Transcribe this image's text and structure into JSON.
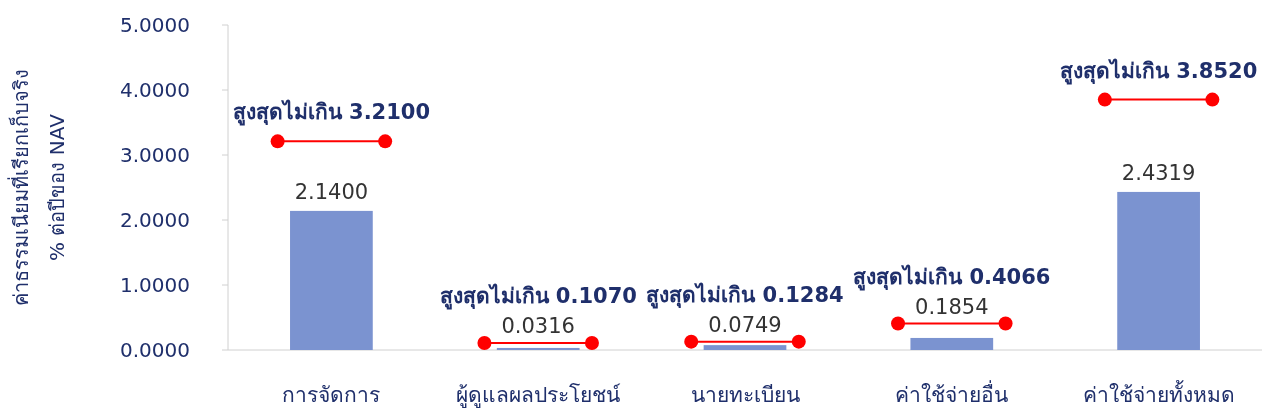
{
  "chart_data": {
    "type": "bar",
    "ylabel": "ค่าธรรมเนียมที่เรียกเก็บจริง\n% ต่อปีของ NAV",
    "categories": [
      "การจัดการ",
      "ผู้ดูแลผลประโยชน์",
      "นายทะเบียน",
      "ค่าใช้จ่ายอื่น",
      "ค่าใช้จ่ายทั้งหมด"
    ],
    "series": [
      {
        "color": "#7b93d0",
        "values": [
          2.14,
          0.0316,
          0.0749,
          0.1854,
          2.4319
        ],
        "value_labels": [
          "2.1400",
          "0.0316",
          "0.0749",
          "0.1854",
          "2.4319"
        ]
      },
      {
        "type": "scatter",
        "color": "#ff0000",
        "marker": "circle",
        "values": [
          3.21,
          0.107,
          0.1284,
          0.4066,
          3.852
        ],
        "value_labels": [
          "สูงสุดไม่เกิน 3.2100",
          "สูงสุดไม่เกิน 0.1070",
          "สูงสุดไม่เกิน 0.1284",
          "สูงสุดไม่เกิน 0.4066",
          "สูงสุดไม่เกิน 3.8520"
        ]
      }
    ],
    "ylim": [
      0,
      5
    ],
    "yticks": [
      {
        "value": 0,
        "label": "0.0000"
      },
      {
        "value": 1,
        "label": "1.0000"
      },
      {
        "value": 2,
        "label": "2.0000"
      },
      {
        "value": 3,
        "label": "3.0000"
      },
      {
        "value": 4,
        "label": "4.0000"
      },
      {
        "value": 5,
        "label": "5.0000"
      }
    ],
    "grid": false
  }
}
